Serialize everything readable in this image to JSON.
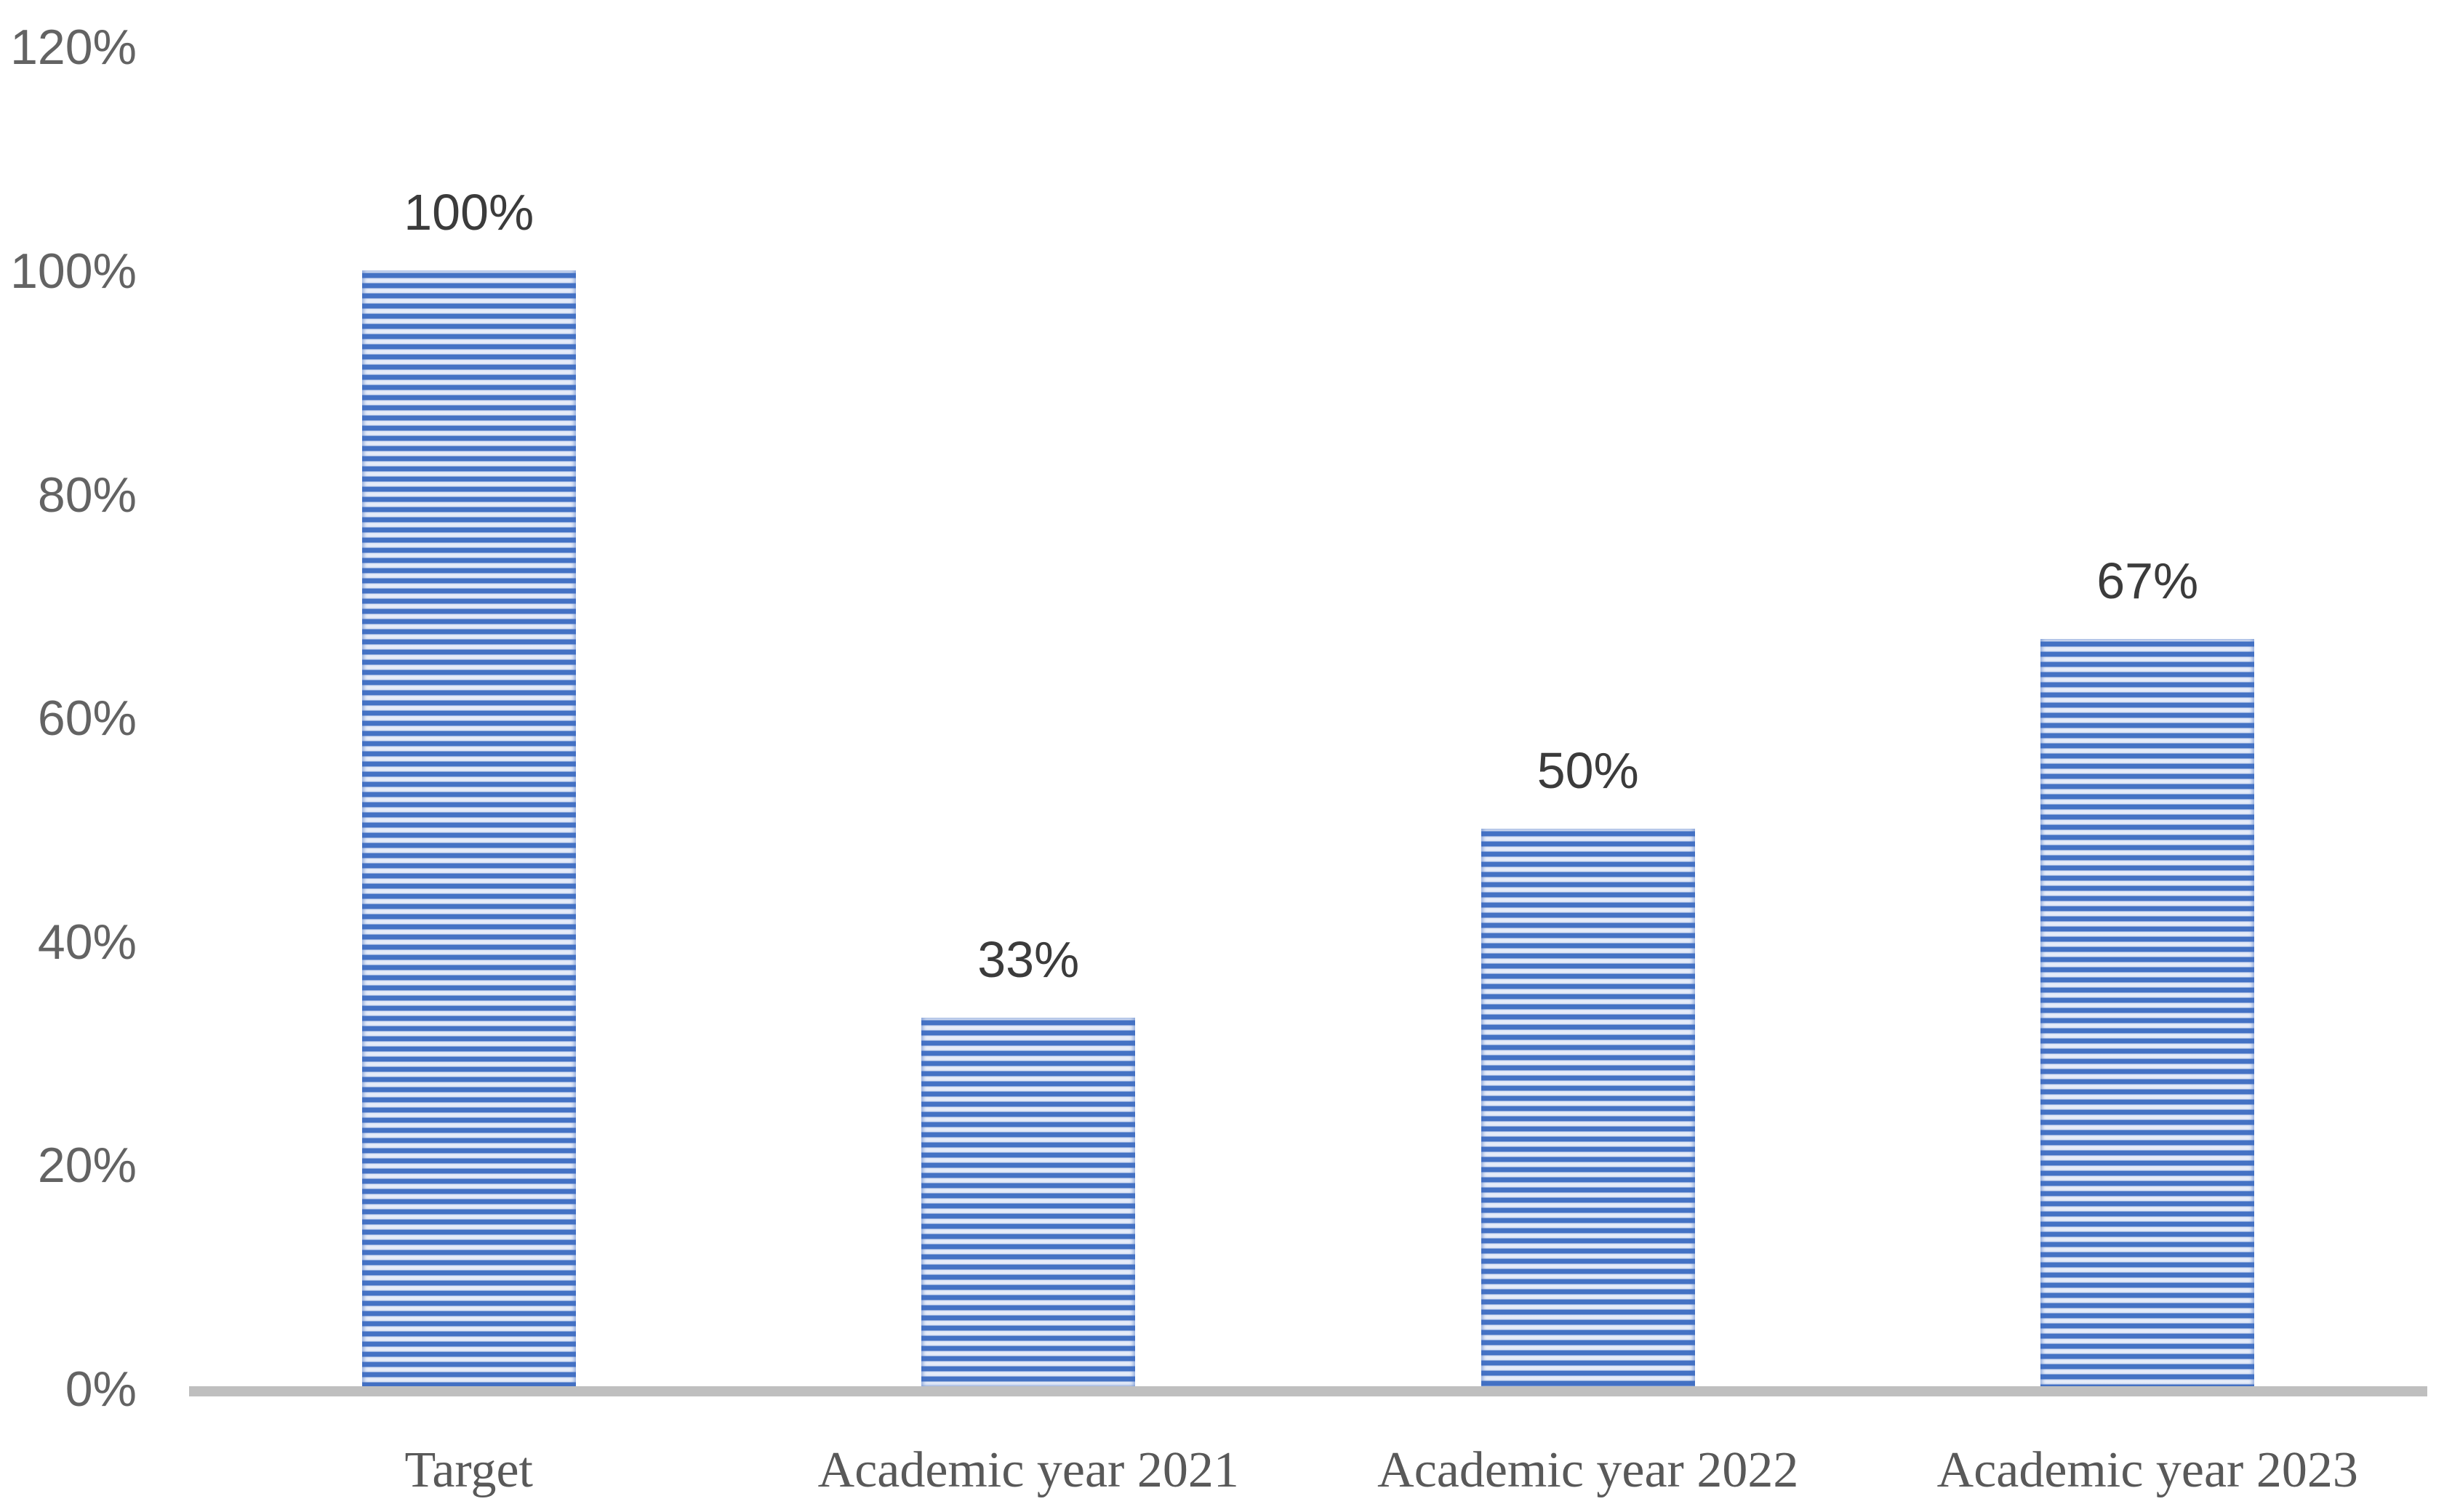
{
  "chart_data": {
    "type": "bar",
    "title": "",
    "categories": [
      "Target",
      "Academic year 2021",
      "Academic year 2022",
      "Academic year 2023"
    ],
    "values": [
      100,
      33,
      50,
      67
    ],
    "data_labels": [
      "100%",
      "33%",
      "50%",
      "67%"
    ],
    "y_ticks": [
      {
        "value": 0,
        "label": "0%"
      },
      {
        "value": 20,
        "label": "20%"
      },
      {
        "value": 40,
        "label": "40%"
      },
      {
        "value": 60,
        "label": "60%"
      },
      {
        "value": 80,
        "label": "80%"
      },
      {
        "value": 100,
        "label": "100%"
      },
      {
        "value": 120,
        "label": "120%"
      }
    ],
    "ylim": [
      0,
      120
    ],
    "grid": false,
    "legend": false,
    "colors": {
      "bar_stripe_dark": "#4472C4",
      "bar_stripe_light": "#D9E2F4",
      "bar_stripe_sheen": "#EAEFFA",
      "axis_line": "#BFBFBF",
      "tick_label": "#636363",
      "category_label": "#595959",
      "data_label": "#3B3B3B"
    }
  }
}
